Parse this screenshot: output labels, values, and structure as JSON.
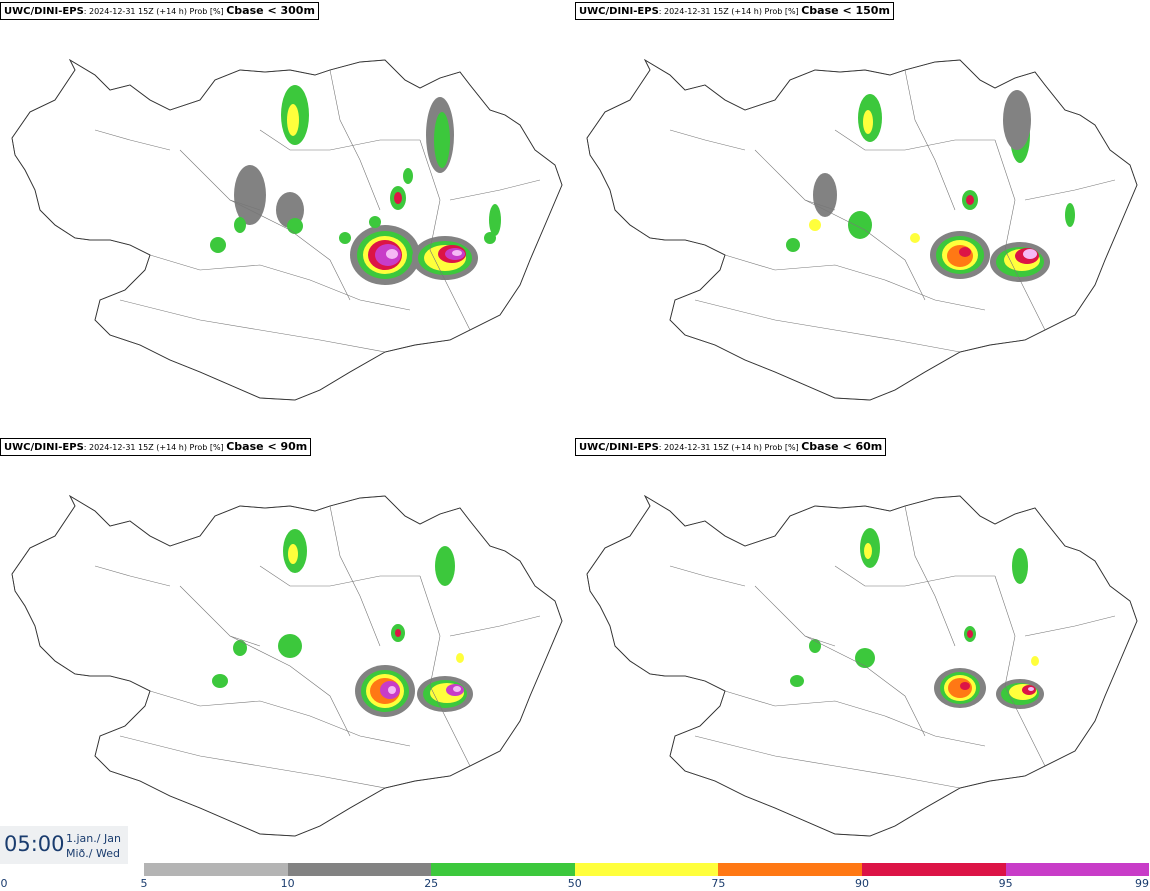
{
  "panels": [
    {
      "model": "UWC/DINI-EPS",
      "meta": ": 2024-12-31 15Z (+14 h) Prob [%] ",
      "threshold": "Cbase < 300m"
    },
    {
      "model": "UWC/DINI-EPS",
      "meta": ": 2024-12-31 15Z (+14 h) Prob [%] ",
      "threshold": "Cbase < 150m"
    },
    {
      "model": "UWC/DINI-EPS",
      "meta": ": 2024-12-31 15Z (+14 h) Prob [%] ",
      "threshold": "Cbase < 90m"
    },
    {
      "model": "UWC/DINI-EPS",
      "meta": ": 2024-12-31 15Z (+14 h) Prob [%] ",
      "threshold": "Cbase < 60m"
    }
  ],
  "valid_time": {
    "time": "05:00",
    "date_line1": "1.jan./ Jan",
    "date_line2": "Mið./ Wed"
  },
  "legend": {
    "ticks": [
      "0",
      "5",
      "10",
      "25",
      "50",
      "75",
      "90",
      "95",
      "99"
    ],
    "colors": [
      "#ffffff",
      "#b4b4b4",
      "#828282",
      "#3cc83c",
      "#ffff3c",
      "#ff7814",
      "#dc1446",
      "#c83cc8",
      "#f5b9f5"
    ]
  }
}
